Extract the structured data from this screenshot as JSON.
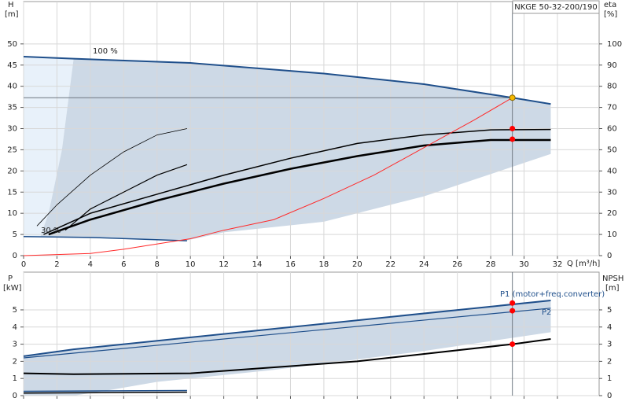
{
  "chart_data": [
    {
      "type": "line",
      "title": "NKGE 50-32-200/190",
      "ylabel": "H",
      "yunit": "[m]",
      "y2label": "eta",
      "y2unit": "[%]",
      "xlabel": "Q [m³/h]",
      "xlim": [
        0,
        34.5
      ],
      "xticks": [
        0,
        2,
        4,
        6,
        8,
        10,
        12,
        14,
        16,
        18,
        20,
        22,
        24,
        26,
        28,
        30,
        32
      ],
      "xtick_labels": true,
      "ylim": [
        0,
        60
      ],
      "yticks": [
        0,
        5,
        10,
        15,
        20,
        25,
        30,
        35,
        40,
        45,
        50
      ],
      "y2lim": [
        0,
        120
      ],
      "y2ticks": [
        0,
        10,
        20,
        30,
        40,
        50,
        60,
        70,
        80,
        90,
        100
      ],
      "grid": true,
      "bands": [
        {
          "color": "#e8f1fa",
          "x": [
            0,
            3,
            2.3,
            1.5,
            1,
            0
          ],
          "values": [
            47,
            46.5,
            25,
            10,
            4.4,
            4.5
          ]
        },
        {
          "color": "#cdd9e6",
          "x": [
            3,
            10,
            18,
            24,
            29.3,
            31.6,
            31.6,
            24,
            18,
            12,
            9.8,
            1,
            1.5,
            2.3
          ],
          "values": [
            46.5,
            45.5,
            43,
            40.5,
            37.3,
            35.8,
            24,
            14,
            8,
            5.5,
            3.6,
            4.4,
            10,
            25
          ]
        }
      ],
      "series": [
        {
          "name": "100 %",
          "color": "#1f4f8b",
          "width": 2,
          "x": [
            0,
            3,
            10,
            18,
            24,
            29.3,
            31.6
          ],
          "values": [
            47,
            46.5,
            45.5,
            43,
            40.5,
            37.3,
            35.8
          ]
        },
        {
          "name": "30 %",
          "color": "#1f4f8b",
          "width": 1.5,
          "x": [
            0,
            4,
            9.8
          ],
          "values": [
            4.5,
            4.3,
            3.5
          ]
        },
        {
          "color": "#000000",
          "width": 1.5,
          "x": [
            1.2,
            4,
            8,
            12,
            16,
            20,
            24,
            28,
            31.6
          ],
          "values": [
            5,
            10,
            14.5,
            19,
            23,
            26.5,
            28.5,
            29.7,
            29.8
          ]
        },
        {
          "color": "#000000",
          "width": 2.5,
          "x": [
            1.5,
            4,
            8,
            12,
            16,
            20,
            24,
            28,
            31.6
          ],
          "values": [
            5,
            8.5,
            13,
            17,
            20.5,
            23.5,
            26,
            27.3,
            27.3
          ]
        },
        {
          "color": "#000000",
          "width": 0.8,
          "x": [
            0.8,
            2,
            4,
            6,
            8,
            9.8
          ],
          "values": [
            7,
            12,
            19,
            24.5,
            28.5,
            30
          ]
        },
        {
          "color": "#000000",
          "width": 1.2,
          "x": [
            2.5,
            4,
            6,
            8,
            9.8
          ],
          "values": [
            6,
            11,
            15,
            19,
            21.5
          ]
        },
        {
          "color": "#ff2a2a",
          "width": 1,
          "axis": "y2",
          "x": [
            0,
            4,
            6,
            10,
            12,
            15,
            18,
            21,
            24,
            27,
            29.3
          ],
          "values": [
            0,
            1,
            3,
            8,
            12,
            17,
            27,
            38,
            51,
            64,
            74.6
          ]
        }
      ],
      "points": [
        {
          "x": 29.3,
          "value": 30,
          "color": "#ff0000",
          "guides": ""
        },
        {
          "x": 29.3,
          "value": 27.5,
          "color": "#ff0000",
          "guides": ""
        },
        {
          "x": 29.3,
          "value": 37.3,
          "color": "#f5b800",
          "guides": "hv"
        }
      ]
    },
    {
      "type": "line",
      "ylabel": "P",
      "yunit": "[kW]",
      "y2label": "NPSH",
      "y2unit": "[m]",
      "xlim": [
        0,
        34.5
      ],
      "xticks": [
        0,
        2,
        4,
        6,
        8,
        10,
        12,
        14,
        16,
        18,
        20,
        22,
        24,
        26,
        28,
        30,
        32
      ],
      "xtick_labels": false,
      "ylim": [
        0,
        7.2
      ],
      "yticks": [
        0,
        1,
        2,
        3,
        4,
        5
      ],
      "y2lim": [
        0,
        7.2
      ],
      "y2ticks": [
        0,
        1,
        2,
        3,
        4,
        5
      ],
      "grid": true,
      "bands": [
        {
          "color": "#cdd9e6",
          "x": [
            0,
            3,
            31.6,
            31.6,
            24,
            15,
            8,
            5,
            3,
            0
          ],
          "values": [
            2.3,
            2.7,
            5.55,
            3.7,
            2.6,
            1.5,
            0.8,
            0.3,
            0,
            0
          ]
        }
      ],
      "series": [
        {
          "name": "P1 (motor+freq.converter)",
          "color": "#1f4f8b",
          "width": 2,
          "x": [
            0,
            3,
            31.6
          ],
          "values": [
            2.3,
            2.7,
            5.55
          ]
        },
        {
          "name": "P2",
          "color": "#1f4f8b",
          "width": 1.2,
          "x": [
            0,
            31.6
          ],
          "values": [
            2.2,
            5.1
          ]
        },
        {
          "color": "#000000",
          "width": 2,
          "axis": "y2",
          "x": [
            0,
            3,
            10,
            20,
            29.3,
            31.6
          ],
          "values": [
            1.3,
            1.25,
            1.3,
            2.0,
            3.0,
            3.3
          ]
        },
        {
          "color": "#1f4f8b",
          "width": 1.5,
          "x": [
            0,
            9.8
          ],
          "values": [
            0.25,
            0.3
          ]
        },
        {
          "color": "#000000",
          "width": 1.5,
          "x": [
            0,
            9.8
          ],
          "values": [
            0.15,
            0.2
          ]
        }
      ],
      "points": [
        {
          "x": 29.3,
          "value": 5.4,
          "color": "#ff0000",
          "guides": "v"
        },
        {
          "x": 29.3,
          "value": 4.95,
          "color": "#ff0000",
          "guides": ""
        },
        {
          "x": 29.3,
          "value": 3.0,
          "color": "#ff0000",
          "guides": ""
        }
      ]
    }
  ]
}
